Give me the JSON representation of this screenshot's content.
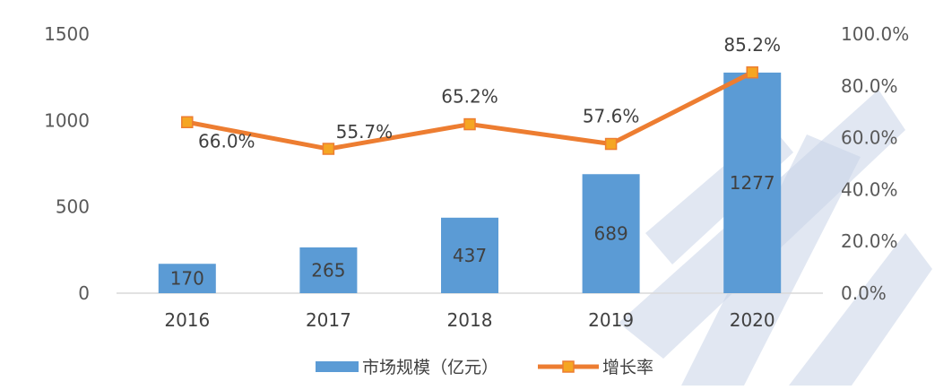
{
  "chart_data": {
    "type": "bar",
    "categories": [
      "2016",
      "2017",
      "2018",
      "2019",
      "2020"
    ],
    "series": [
      {
        "name": "市场规模（亿元）",
        "type": "bar",
        "axis": "left",
        "color": "#5B9BD5",
        "values": [
          170,
          265,
          437,
          689,
          1277
        ],
        "labels": [
          "170",
          "265",
          "437",
          "689",
          "1277"
        ]
      },
      {
        "name": "增长率",
        "type": "line",
        "axis": "right",
        "color": "#ED7D31",
        "values": [
          66.0,
          55.7,
          65.2,
          57.6,
          85.2
        ],
        "labels": [
          "66.0%",
          "55.7%",
          "65.2%",
          "57.6%",
          "85.2%"
        ]
      }
    ],
    "y_left": {
      "min": 0,
      "max": 1500,
      "ticks": [
        "0",
        "500",
        "1000",
        "1500"
      ]
    },
    "y_right": {
      "min": 0,
      "max": 100,
      "ticks": [
        "0.0%",
        "20.0%",
        "40.0%",
        "60.0%",
        "80.0%",
        "100.0%"
      ]
    },
    "legend_position": "bottom",
    "grid": false
  },
  "legend": {
    "bar_label": "市场规模（亿元）",
    "line_label": "增长率"
  },
  "colors": {
    "bar": "#5B9BD5",
    "line": "#ED7D31",
    "marker": "#F5A623",
    "axis": "#D9D9D9",
    "watermark": "#C9D3E8"
  }
}
